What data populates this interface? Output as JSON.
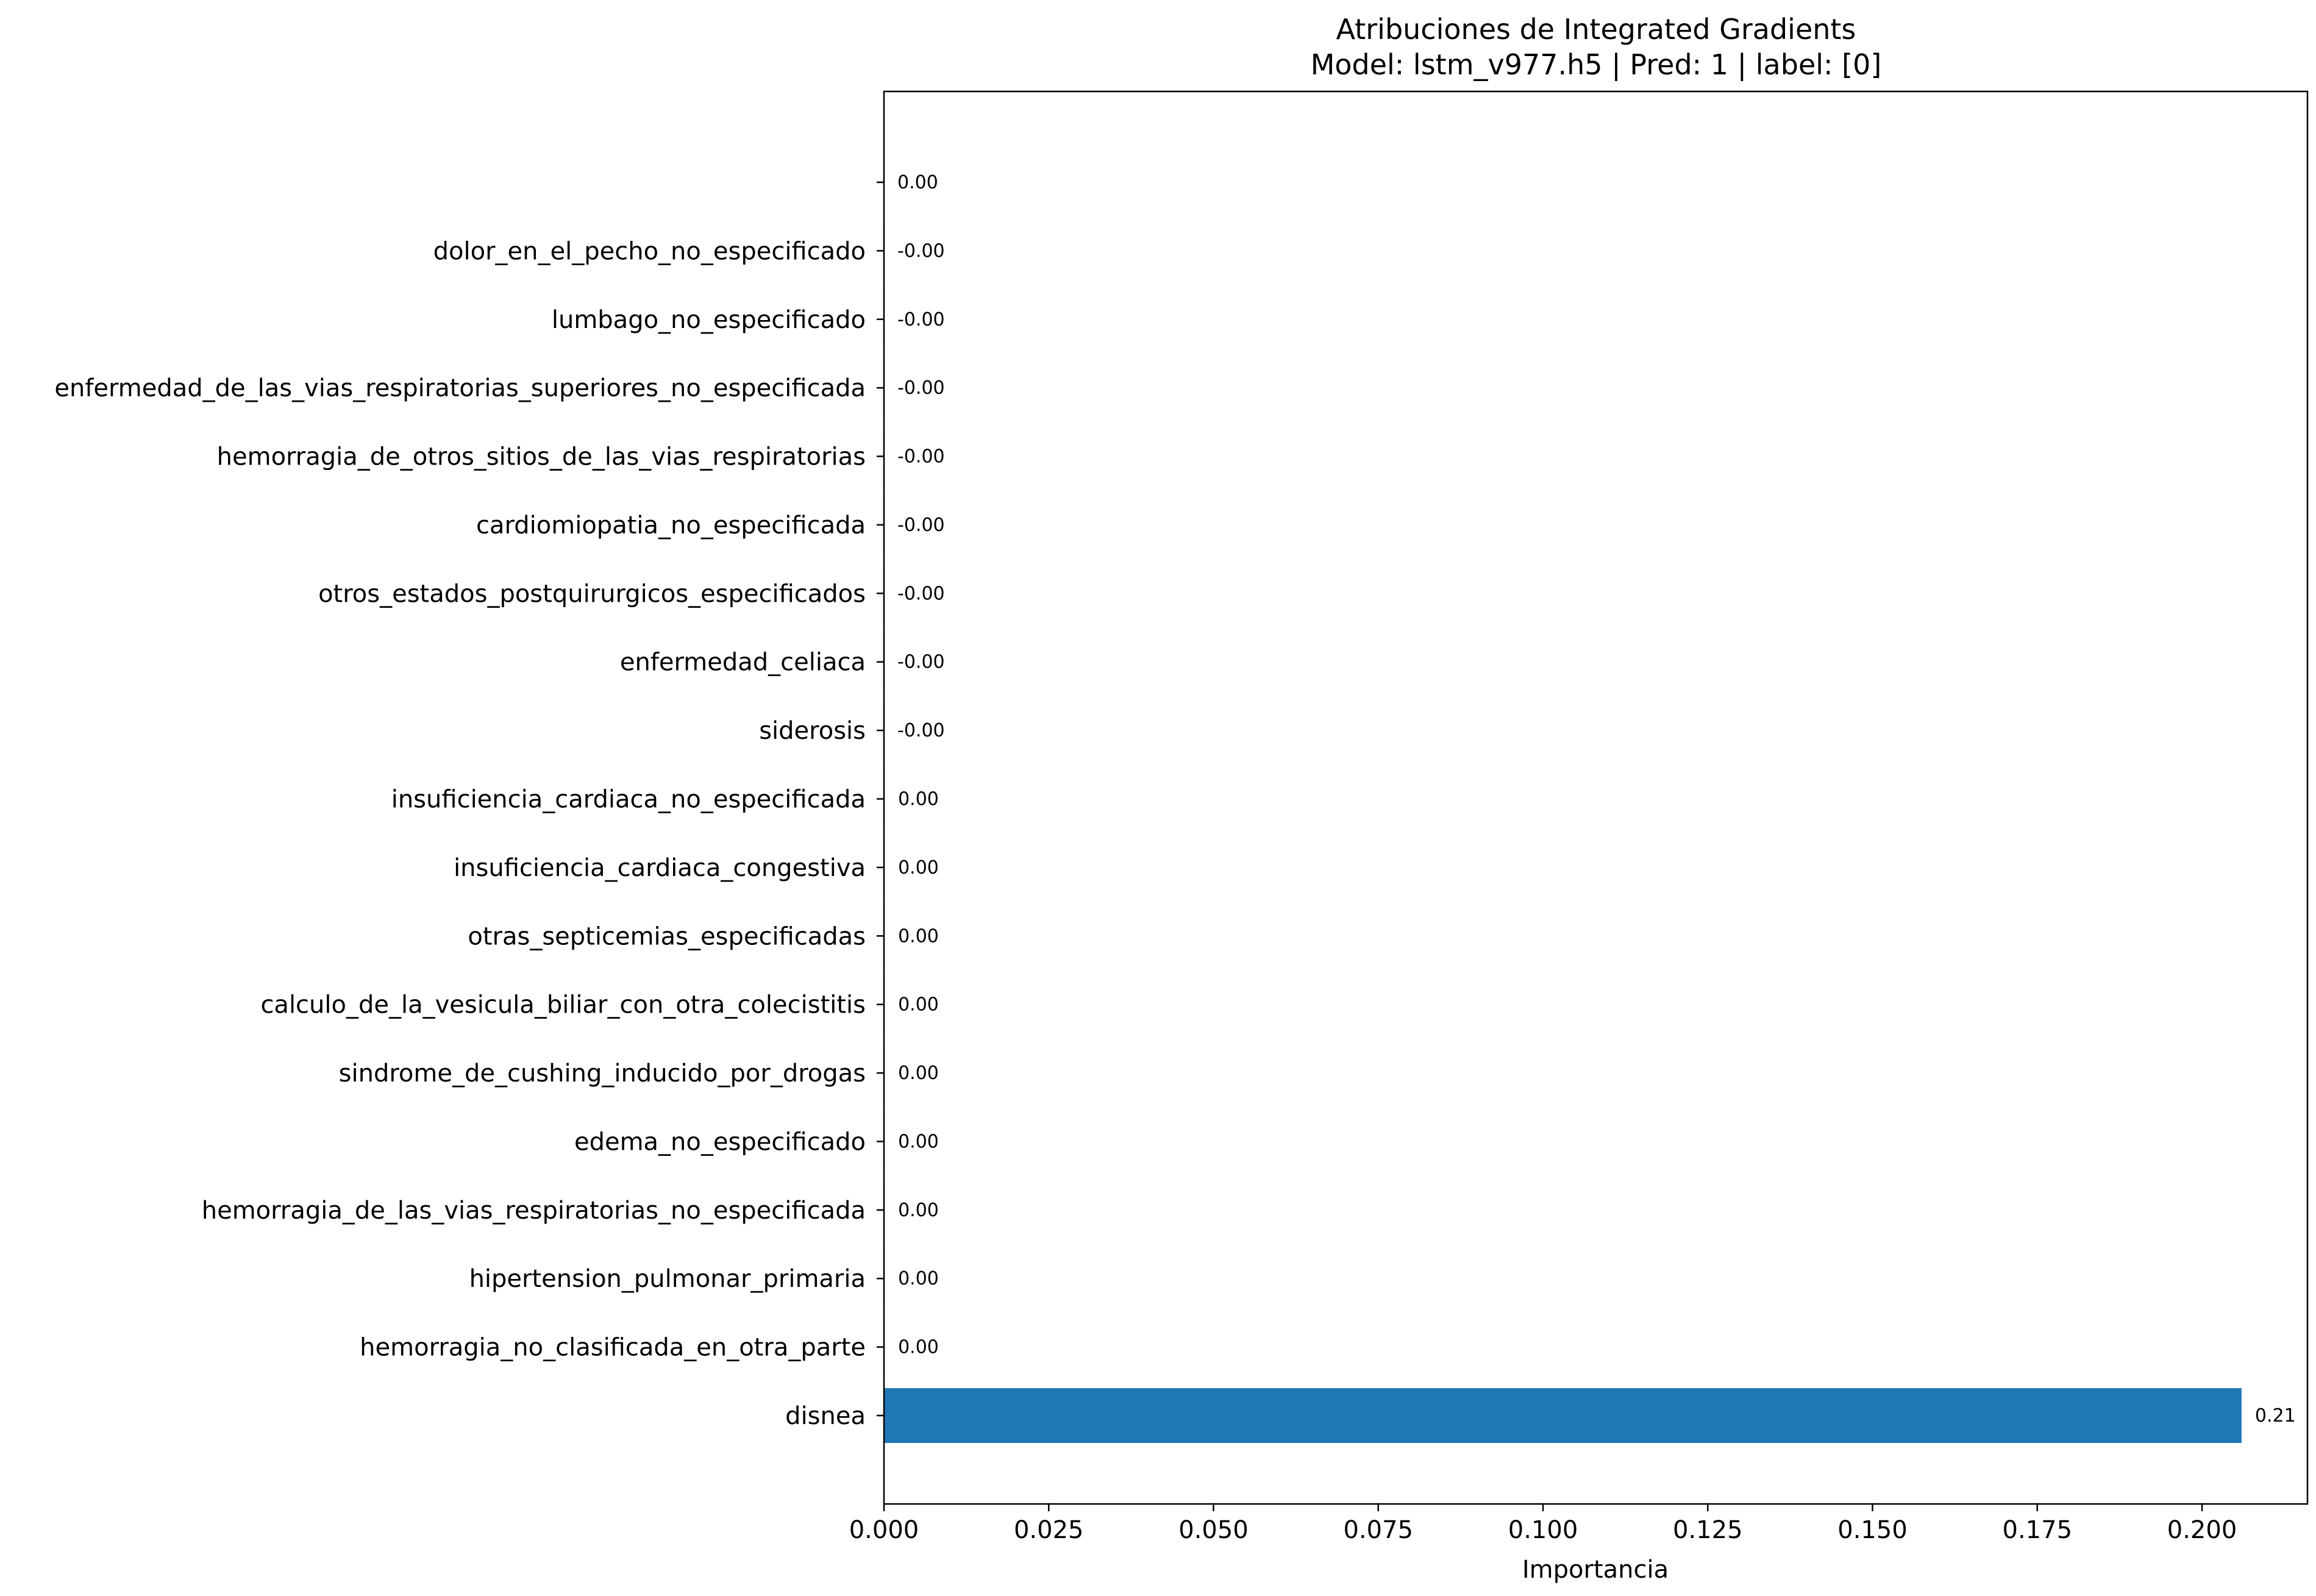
{
  "chart_data": {
    "type": "bar",
    "orientation": "horizontal",
    "title_line1": "Atribuciones de Integrated Gradients",
    "title_line2": "Model: lstm_v977.h5 | Pred: 1 | label: [0]",
    "xlabel": "Importancia",
    "ylabel": "",
    "xlim": [
      0,
      0.216
    ],
    "xticks": [
      "0.000",
      "0.025",
      "0.050",
      "0.075",
      "0.100",
      "0.125",
      "0.150",
      "0.175",
      "0.200"
    ],
    "categories": [
      "disnea",
      "hemorragia_no_clasificada_en_otra_parte",
      "hipertension_pulmonar_primaria",
      "hemorragia_de_las_vias_respiratorias_no_especificada",
      "edema_no_especificado",
      "sindrome_de_cushing_inducido_por_drogas",
      "calculo_de_la_vesicula_biliar_con_otra_colecistitis",
      "otras_septicemias_especificadas",
      "insuficiencia_cardiaca_congestiva",
      "insuficiencia_cardiaca_no_especificada",
      "siderosis",
      "enfermedad_celiaca",
      "otros_estados_postquirurgicos_especificados",
      "cardiomiopatia_no_especificada",
      "hemorragia_de_otros_sitios_de_las_vias_respiratorias",
      "enfermedad_de_las_vias_respiratorias_superiores_no_especificada",
      "lumbago_no_especificado",
      "dolor_en_el_pecho_no_especificado",
      ""
    ],
    "values": [
      0.206,
      0.0001,
      0.0001,
      0.0001,
      0.0001,
      0.0001,
      0.0001,
      0.0001,
      0.0001,
      0.0001,
      -0.0001,
      -0.0001,
      -0.0001,
      -0.0001,
      -0.0001,
      -0.0001,
      -0.0001,
      -0.0001,
      0.0
    ],
    "value_labels": [
      "0.21",
      "0.00",
      "0.00",
      "0.00",
      "0.00",
      "0.00",
      "0.00",
      "0.00",
      "0.00",
      "0.00",
      "-0.00",
      "-0.00",
      "-0.00",
      "-0.00",
      "-0.00",
      "-0.00",
      "-0.00",
      "-0.00",
      "0.00"
    ],
    "bar_color": "#1f77b4",
    "grid": false,
    "legend": "none"
  }
}
